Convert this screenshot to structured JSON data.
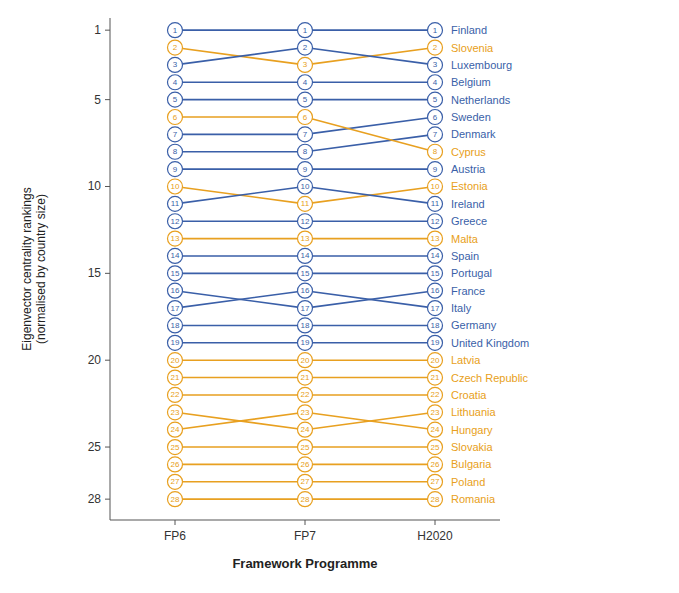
{
  "chart_data": {
    "type": "line",
    "categories": [
      "FP6",
      "FP7",
      "H2020"
    ],
    "series": [
      {
        "name": "Finland",
        "color": "#3a5fa8",
        "values": [
          1,
          1,
          1
        ]
      },
      {
        "name": "Slovenia",
        "color": "#e8a020",
        "values": [
          2,
          3,
          2
        ]
      },
      {
        "name": "Luxembourg",
        "color": "#3a5fa8",
        "values": [
          3,
          2,
          3
        ]
      },
      {
        "name": "Belgium",
        "color": "#3a5fa8",
        "values": [
          4,
          4,
          4
        ]
      },
      {
        "name": "Netherlands",
        "color": "#3a5fa8",
        "values": [
          5,
          5,
          5
        ]
      },
      {
        "name": "Sweden",
        "color": "#3a5fa8",
        "values": [
          7,
          7,
          6
        ]
      },
      {
        "name": "Denmark",
        "color": "#3a5fa8",
        "values": [
          8,
          8,
          7
        ]
      },
      {
        "name": "Cyprus",
        "color": "#e8a020",
        "values": [
          6,
          6,
          8
        ]
      },
      {
        "name": "Austria",
        "color": "#3a5fa8",
        "values": [
          9,
          9,
          9
        ]
      },
      {
        "name": "Estonia",
        "color": "#e8a020",
        "values": [
          10,
          11,
          10
        ]
      },
      {
        "name": "Ireland",
        "color": "#3a5fa8",
        "values": [
          11,
          10,
          11
        ]
      },
      {
        "name": "Greece",
        "color": "#3a5fa8",
        "values": [
          12,
          12,
          12
        ]
      },
      {
        "name": "Malta",
        "color": "#e8a020",
        "values": [
          13,
          13,
          13
        ]
      },
      {
        "name": "Spain",
        "color": "#3a5fa8",
        "values": [
          14,
          14,
          14
        ]
      },
      {
        "name": "Portugal",
        "color": "#3a5fa8",
        "values": [
          15,
          15,
          15
        ]
      },
      {
        "name": "France",
        "color": "#3a5fa8",
        "values": [
          16,
          17,
          16
        ]
      },
      {
        "name": "Italy",
        "color": "#3a5fa8",
        "values": [
          17,
          16,
          17
        ]
      },
      {
        "name": "Germany",
        "color": "#3a5fa8",
        "values": [
          18,
          18,
          18
        ]
      },
      {
        "name": "United Kingdom",
        "color": "#3a5fa8",
        "values": [
          19,
          19,
          19
        ]
      },
      {
        "name": "Latvia",
        "color": "#e8a020",
        "values": [
          20,
          20,
          20
        ]
      },
      {
        "name": "Czech Republic",
        "color": "#e8a020",
        "values": [
          21,
          21,
          21
        ]
      },
      {
        "name": "Croatia",
        "color": "#e8a020",
        "values": [
          22,
          22,
          22
        ]
      },
      {
        "name": "Lithuania",
        "color": "#e8a020",
        "values": [
          23,
          24,
          23
        ]
      },
      {
        "name": "Hungary",
        "color": "#e8a020",
        "values": [
          24,
          23,
          24
        ]
      },
      {
        "name": "Slovakia",
        "color": "#e8a020",
        "values": [
          25,
          25,
          25
        ]
      },
      {
        "name": "Bulgaria",
        "color": "#e8a020",
        "values": [
          26,
          26,
          26
        ]
      },
      {
        "name": "Poland",
        "color": "#e8a020",
        "values": [
          27,
          27,
          27
        ]
      },
      {
        "name": "Romania",
        "color": "#e8a020",
        "values": [
          28,
          28,
          28
        ]
      }
    ],
    "xlabel": "Framework Programme",
    "ylabel": "Eigenvector centrality rankings\n(normalised by country size)",
    "ylim": [
      29.2,
      0.3
    ],
    "yticks": [
      1,
      5,
      10,
      15,
      20,
      25,
      28
    ],
    "grid": false,
    "data_labels": true,
    "marker": "circle"
  }
}
